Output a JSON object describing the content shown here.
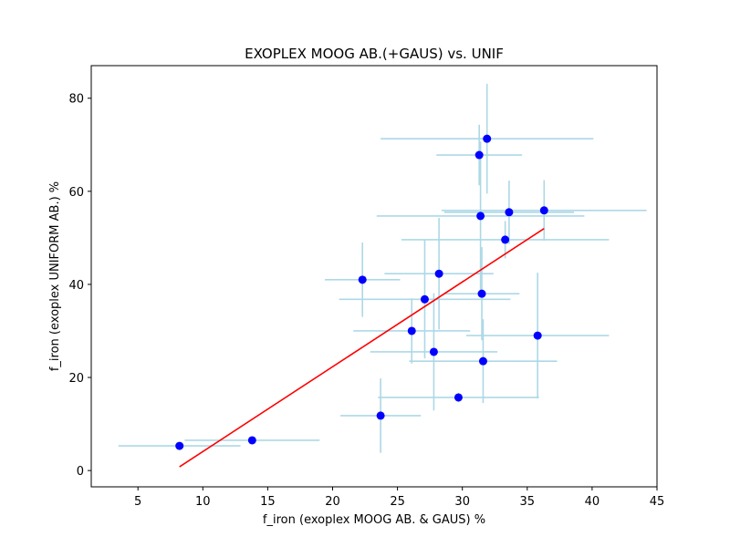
{
  "chart_data": {
    "type": "scatter",
    "title": "EXOPLEX MOOG AB.(+GAUS) vs. UNIF",
    "xlabel": "f_iron (exoplex MOOG AB. & GAUS) %",
    "ylabel": "f_iron (exoplex UNIFORM AB.) %",
    "xlim": [
      1.4,
      45.0
    ],
    "ylim": [
      -3.5,
      87.0
    ],
    "xticks": [
      5,
      10,
      15,
      20,
      25,
      30,
      35,
      40,
      45
    ],
    "yticks": [
      0,
      20,
      40,
      60,
      80
    ],
    "grid": false,
    "colors": {
      "points": "#0000ff",
      "errorbars": "#add8e6",
      "fit_line": "#ff0000"
    },
    "points": [
      {
        "x": 8.2,
        "y": 5.3,
        "xerr": 4.7,
        "yerr": 0.6
      },
      {
        "x": 13.8,
        "y": 6.5,
        "xerr": 5.2,
        "yerr": 0.6
      },
      {
        "x": 22.3,
        "y": 41.0,
        "xerr": 2.9,
        "yerr": 8.0
      },
      {
        "x": 23.7,
        "y": 11.8,
        "xerr": 3.1,
        "yerr": 8.0
      },
      {
        "x": 26.1,
        "y": 30.0,
        "xerr": 4.5,
        "yerr": 7.0
      },
      {
        "x": 27.1,
        "y": 36.8,
        "xerr": 6.6,
        "yerr": 12.7
      },
      {
        "x": 27.8,
        "y": 25.5,
        "xerr": 4.9,
        "yerr": 12.6
      },
      {
        "x": 28.2,
        "y": 42.3,
        "xerr": 4.2,
        "yerr": 12.0
      },
      {
        "x": 29.7,
        "y": 15.7,
        "xerr": 6.2,
        "yerr": 1.0
      },
      {
        "x": 31.3,
        "y": 67.8,
        "xerr": 3.3,
        "yerr": 6.5
      },
      {
        "x": 31.4,
        "y": 54.7,
        "xerr": 8.0,
        "yerr": 16.0
      },
      {
        "x": 31.5,
        "y": 38.0,
        "xerr": 2.9,
        "yerr": 10.0
      },
      {
        "x": 31.6,
        "y": 23.5,
        "xerr": 5.7,
        "yerr": 9.0
      },
      {
        "x": 31.9,
        "y": 71.3,
        "xerr": 8.2,
        "yerr": 11.8
      },
      {
        "x": 33.3,
        "y": 49.6,
        "xerr": 8.0,
        "yerr": 4.0
      },
      {
        "x": 33.6,
        "y": 55.5,
        "xerr": 5.0,
        "yerr": 6.8
      },
      {
        "x": 35.8,
        "y": 29.0,
        "xerr": 5.5,
        "yerr": 13.5
      },
      {
        "x": 36.3,
        "y": 55.9,
        "xerr": 7.9,
        "yerr": 6.5
      }
    ],
    "fit_line": {
      "x": [
        8.2,
        36.3
      ],
      "y": [
        0.8,
        52.0
      ]
    }
  }
}
